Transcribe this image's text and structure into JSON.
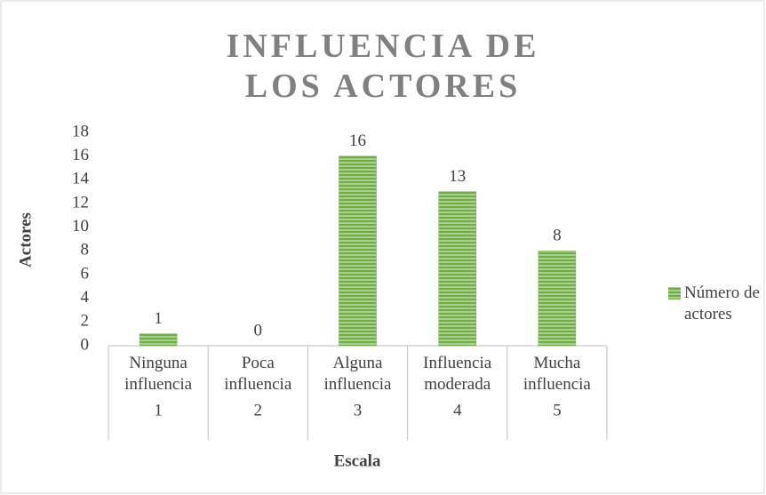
{
  "chart_data": {
    "type": "bar",
    "title": "INFLUENCIA DE LOS ACTORES",
    "categories": [
      "Ninguna influencia",
      "Poca influencia",
      "Alguna influencia",
      "Influencia moderada",
      "Mucha influencia"
    ],
    "category_numbers": [
      "1",
      "2",
      "3",
      "4",
      "5"
    ],
    "series": [
      {
        "name": "Número de actores",
        "color": "#70ad47",
        "values": [
          1,
          0,
          16,
          13,
          8
        ]
      }
    ],
    "ylim": [
      0,
      18
    ],
    "yticks": [
      0,
      2,
      4,
      6,
      8,
      10,
      12,
      14,
      16,
      18
    ],
    "xlabel": "Escala",
    "ylabel": "Actores",
    "legend": "right",
    "grid": false
  }
}
